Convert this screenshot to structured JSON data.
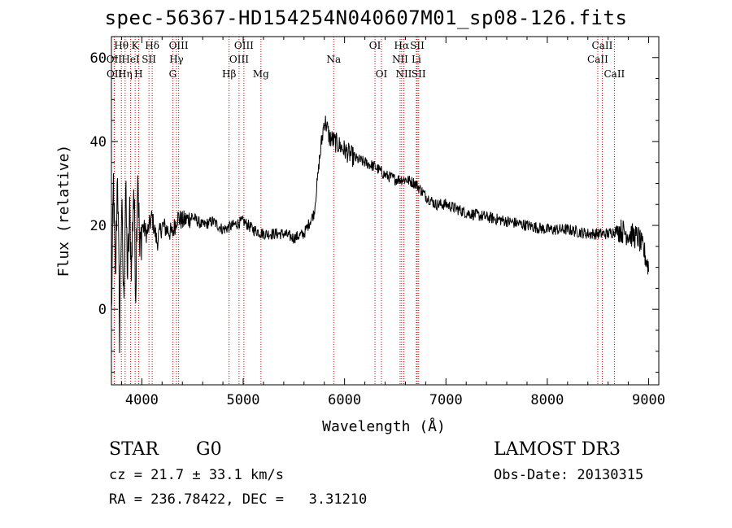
{
  "chart_data": {
    "type": "line",
    "title": "spec-56367-HD154254N040607M01_sp08-126.fits",
    "xlabel": "Wavelength (Å)",
    "ylabel": "Flux (relative)",
    "xlim": [
      3700,
      9100
    ],
    "ylim": [
      -18,
      65
    ],
    "xticks": [
      4000,
      5000,
      6000,
      7000,
      8000,
      9000
    ],
    "yticks": [
      0,
      20,
      40,
      60
    ],
    "series": [
      {
        "color": "#000000",
        "x": [
          3700,
          3720,
          3740,
          3760,
          3780,
          3800,
          3820,
          3840,
          3860,
          3880,
          3900,
          3920,
          3940,
          3960,
          3980,
          4000,
          4050,
          4100,
          4150,
          4200,
          4250,
          4300,
          4350,
          4400,
          4500,
          4600,
          4700,
          4800,
          4900,
          5000,
          5100,
          5200,
          5300,
          5400,
          5500,
          5600,
          5700,
          5750,
          5800,
          5820,
          5850,
          5900,
          5950,
          6000,
          6100,
          6200,
          6300,
          6400,
          6500,
          6600,
          6700,
          6800,
          6900,
          7000,
          7200,
          7400,
          7600,
          7800,
          8000,
          8200,
          8400,
          8500,
          8600,
          8700,
          8800,
          8900,
          8950,
          9000
        ],
        "y": [
          -2,
          30,
          5,
          35,
          -5,
          25,
          2,
          28,
          8,
          22,
          10,
          30,
          5,
          35,
          12,
          20,
          18,
          22,
          16,
          20,
          19,
          18,
          22,
          21,
          22,
          20,
          21,
          19,
          20,
          21,
          19,
          18,
          18,
          18,
          17,
          18,
          23,
          35,
          45,
          44,
          41,
          40,
          39,
          38,
          36,
          35,
          34,
          32,
          31,
          31,
          30,
          27,
          25,
          25,
          23,
          22,
          21,
          20,
          19,
          19,
          18,
          18,
          18,
          19,
          18,
          17,
          14,
          10
        ]
      }
    ],
    "line_markers": [
      {
        "label": "Hθ",
        "x": 3798,
        "row": 0
      },
      {
        "label": "OII",
        "x": 3727,
        "row": 1
      },
      {
        "label": "OII",
        "x": 3729,
        "row": 2
      },
      {
        "label": "K",
        "x": 3934,
        "row": 0
      },
      {
        "label": "HeI",
        "x": 3889,
        "row": 1
      },
      {
        "label": "Hη",
        "x": 3835,
        "row": 2
      },
      {
        "label": "Hδ",
        "x": 4102,
        "row": 0
      },
      {
        "label": "SII",
        "x": 4070,
        "row": 1
      },
      {
        "label": "H",
        "x": 3968,
        "row": 2
      },
      {
        "label": "OIII",
        "x": 4363,
        "row": 0
      },
      {
        "label": "Hγ",
        "x": 4341,
        "row": 1
      },
      {
        "label": "G",
        "x": 4305,
        "row": 2
      },
      {
        "label": "OIII",
        "x": 5007,
        "row": 0
      },
      {
        "label": "OIII",
        "x": 4959,
        "row": 1
      },
      {
        "label": "Hβ",
        "x": 4861,
        "row": 2
      },
      {
        "label": "Mg",
        "x": 5175,
        "row": 2
      },
      {
        "label": "Na",
        "x": 5893,
        "row": 1
      },
      {
        "label": "OI",
        "x": 6300,
        "row": 0
      },
      {
        "label": "OI",
        "x": 6364,
        "row": 2
      },
      {
        "label": "Hα",
        "x": 6563,
        "row": 0
      },
      {
        "label": "NII",
        "x": 6548,
        "row": 1
      },
      {
        "label": "NII",
        "x": 6584,
        "row": 2
      },
      {
        "label": "SII",
        "x": 6717,
        "row": 0
      },
      {
        "label": "Li",
        "x": 6708,
        "row": 1
      },
      {
        "label": "SII",
        "x": 6731,
        "row": 2
      },
      {
        "label": "CaII",
        "x": 8542,
        "row": 0
      },
      {
        "label": "CaII",
        "x": 8498,
        "row": 1
      },
      {
        "label": "CaII",
        "x": 8662,
        "row": 2
      }
    ],
    "colors": {
      "spectrum": "#000000",
      "markers": "#cc0000",
      "axes": "#000000"
    }
  },
  "info": {
    "class": "STAR",
    "subclass": "G0",
    "survey": "LAMOST DR3",
    "cz": "cz = 21.7 ± 33.1 km/s",
    "obs_date": "Obs-Date: 20130315",
    "radec": "RA = 236.78422, DEC =   3.31210"
  }
}
